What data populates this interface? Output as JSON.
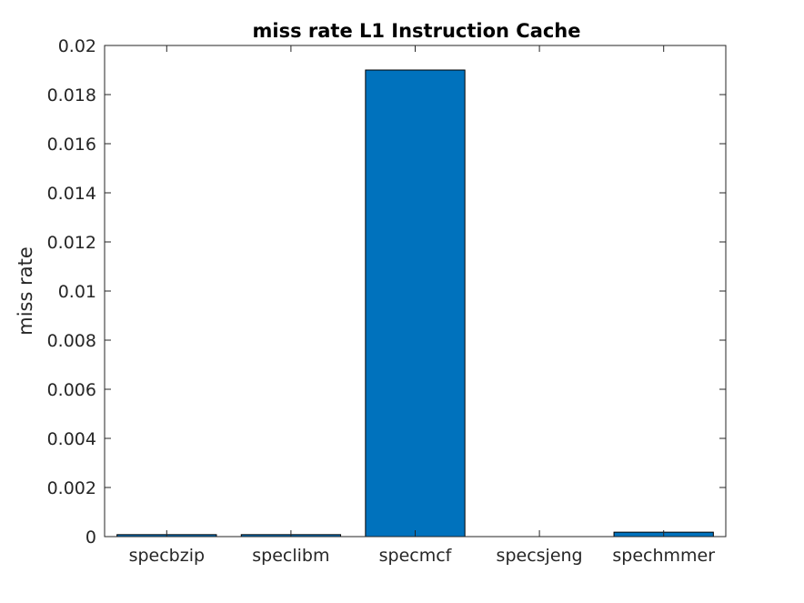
{
  "chart_data": {
    "type": "bar",
    "title": "miss rate L1 Instruction Cache",
    "xlabel": "",
    "ylabel": "miss rate",
    "categories": [
      "specbzip",
      "speclibm",
      "specmcf",
      "specsjeng",
      "spechmmer"
    ],
    "values": [
      8e-05,
      8e-05,
      0.019,
      0.0,
      0.00018
    ],
    "ylim": [
      0,
      0.02
    ],
    "xlim": [
      0.5,
      5.5
    ],
    "yticks": [
      0,
      0.002,
      0.004,
      0.006,
      0.008,
      0.01,
      0.012,
      0.014,
      0.016,
      0.018,
      0.02
    ],
    "ytick_labels": [
      "0",
      "0.002",
      "0.004",
      "0.006",
      "0.008",
      "0.01",
      "0.012",
      "0.014",
      "0.016",
      "0.018",
      "0.02"
    ],
    "bar_color": "#0072BD",
    "grid": false,
    "legend": "none"
  }
}
